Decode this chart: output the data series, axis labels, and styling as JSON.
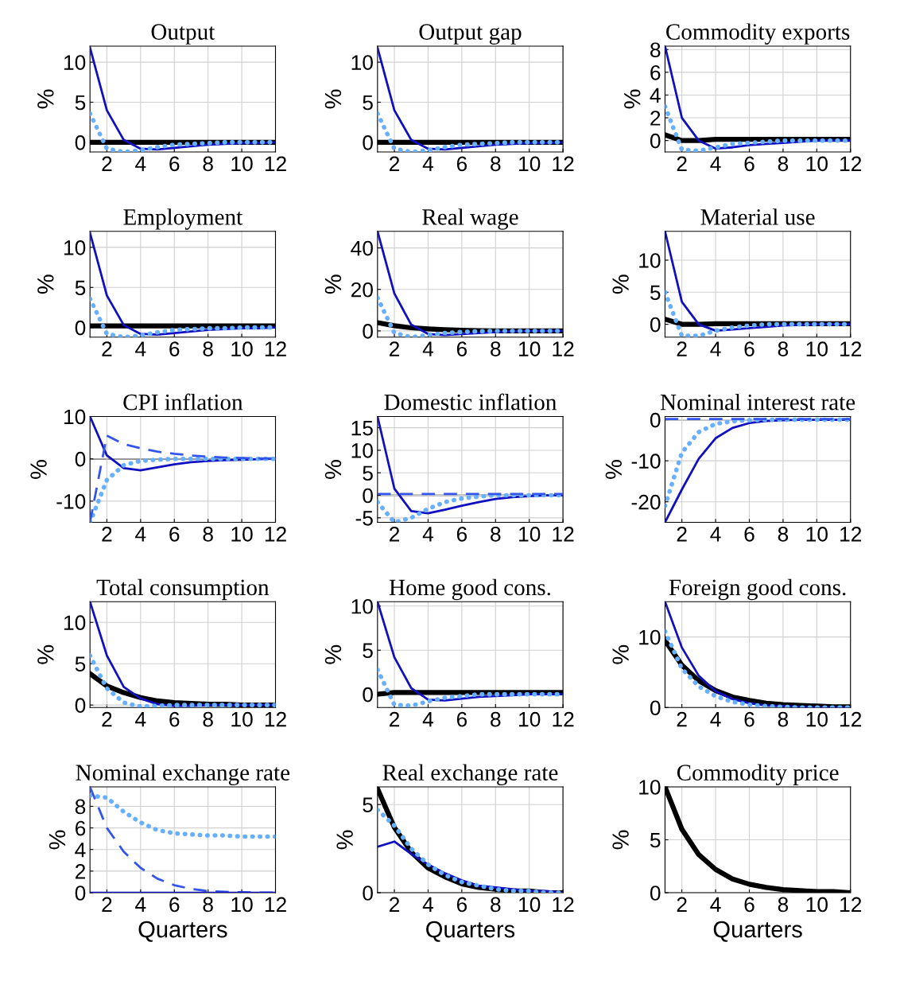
{
  "chart_data": [
    {
      "type": "line",
      "title": "Output",
      "ylabel": "%",
      "x": [
        1,
        2,
        3,
        4,
        5,
        6,
        7,
        8,
        9,
        10,
        11,
        12
      ],
      "xlim": [
        1,
        12
      ],
      "xticks": [
        2,
        4,
        6,
        8,
        10,
        12
      ],
      "ylim": [
        -1.2,
        12
      ],
      "yticks": [
        0,
        5,
        10
      ],
      "grid": true,
      "series": [
        {
          "color": "#1010c0",
          "line_style": "solid",
          "values": [
            11.8,
            4,
            0.3,
            -0.8,
            -0.9,
            -0.7,
            -0.5,
            -0.3,
            -0.2,
            -0.1,
            -0.1,
            0
          ]
        },
        {
          "color": "#66b0ff",
          "line_style": "dotted",
          "values": [
            3.6,
            -0.8,
            -1.2,
            -1.0,
            -0.6,
            -0.3,
            -0.2,
            -0.1,
            0,
            0,
            0,
            0
          ]
        },
        {
          "color": "#000000",
          "line_style": "solid",
          "values": [
            0,
            0,
            0,
            0,
            0,
            0,
            0,
            0,
            0,
            0,
            0,
            0
          ]
        }
      ]
    },
    {
      "type": "line",
      "title": "Output gap",
      "ylabel": "%",
      "x": [
        1,
        2,
        3,
        4,
        5,
        6,
        7,
        8,
        9,
        10,
        11,
        12
      ],
      "xlim": [
        1,
        12
      ],
      "xticks": [
        2,
        4,
        6,
        8,
        10,
        12
      ],
      "ylim": [
        -1.2,
        12
      ],
      "yticks": [
        0,
        5,
        10
      ],
      "grid": true,
      "series": [
        {
          "color": "#1010c0",
          "line_style": "solid",
          "values": [
            11.8,
            4,
            0.3,
            -0.8,
            -0.9,
            -0.7,
            -0.5,
            -0.3,
            -0.2,
            -0.1,
            -0.1,
            0
          ]
        },
        {
          "color": "#66b0ff",
          "line_style": "dotted",
          "values": [
            3.6,
            -0.8,
            -1.2,
            -1.0,
            -0.6,
            -0.3,
            -0.2,
            -0.1,
            0,
            0,
            0,
            0
          ]
        },
        {
          "color": "#000000",
          "line_style": "solid",
          "values": [
            0,
            0,
            0,
            0,
            0,
            0,
            0,
            0,
            0,
            0,
            0,
            0
          ]
        }
      ]
    },
    {
      "type": "line",
      "title": "Commodity exports",
      "ylabel": "%",
      "x": [
        1,
        2,
        3,
        4,
        5,
        6,
        7,
        8,
        9,
        10,
        11,
        12
      ],
      "xlim": [
        1,
        12
      ],
      "xticks": [
        2,
        4,
        6,
        8,
        10,
        12
      ],
      "ylim": [
        -1,
        8.3
      ],
      "yticks": [
        0,
        2,
        4,
        6,
        8
      ],
      "grid": true,
      "series": [
        {
          "color": "#1010c0",
          "line_style": "solid",
          "values": [
            8.3,
            2,
            0,
            -0.7,
            -0.6,
            -0.4,
            -0.3,
            -0.2,
            -0.1,
            0,
            0,
            0
          ]
        },
        {
          "color": "#66b0ff",
          "line_style": "dotted",
          "values": [
            3,
            -0.8,
            -0.9,
            -0.6,
            -0.3,
            -0.2,
            -0.1,
            0,
            0,
            0,
            0,
            0
          ]
        },
        {
          "color": "#000000",
          "line_style": "solid",
          "values": [
            0.5,
            0,
            0,
            0.1,
            0.1,
            0.1,
            0.1,
            0.1,
            0.1,
            0.1,
            0.1,
            0.1
          ]
        }
      ]
    },
    {
      "type": "line",
      "title": "Employment",
      "ylabel": "%",
      "x": [
        1,
        2,
        3,
        4,
        5,
        6,
        7,
        8,
        9,
        10,
        11,
        12
      ],
      "xlim": [
        1,
        12
      ],
      "xticks": [
        2,
        4,
        6,
        8,
        10,
        12
      ],
      "ylim": [
        -1.2,
        12
      ],
      "yticks": [
        0,
        5,
        10
      ],
      "grid": true,
      "series": [
        {
          "color": "#1010c0",
          "line_style": "solid",
          "values": [
            11.8,
            4,
            0.3,
            -0.8,
            -0.9,
            -0.7,
            -0.5,
            -0.3,
            -0.2,
            -0.1,
            -0.1,
            0
          ]
        },
        {
          "color": "#66b0ff",
          "line_style": "dotted",
          "values": [
            3.6,
            -0.8,
            -1.2,
            -1.0,
            -0.6,
            -0.3,
            -0.2,
            -0.1,
            -0.1,
            0,
            0,
            0
          ]
        },
        {
          "color": "#000000",
          "line_style": "solid",
          "values": [
            0.2,
            0.2,
            0.2,
            0.2,
            0.2,
            0.2,
            0.2,
            0.2,
            0.2,
            0.2,
            0.2,
            0.2
          ]
        }
      ]
    },
    {
      "type": "line",
      "title": "Real wage",
      "ylabel": "%",
      "x": [
        1,
        2,
        3,
        4,
        5,
        6,
        7,
        8,
        9,
        10,
        11,
        12
      ],
      "xlim": [
        1,
        12
      ],
      "xticks": [
        2,
        4,
        6,
        8,
        10,
        12
      ],
      "ylim": [
        -3,
        48
      ],
      "yticks": [
        0,
        20,
        40
      ],
      "grid": true,
      "series": [
        {
          "color": "#1010c0",
          "line_style": "solid",
          "values": [
            48,
            18,
            3,
            -1.5,
            -2,
            -1.5,
            -1,
            -0.6,
            -0.3,
            -0.1,
            0,
            0
          ]
        },
        {
          "color": "#66b0ff",
          "line_style": "dotted",
          "values": [
            16,
            -1,
            -3,
            -2,
            -1,
            -0.5,
            -0.2,
            0,
            0,
            0,
            0,
            0
          ]
        },
        {
          "color": "#000000",
          "line_style": "solid",
          "values": [
            4,
            2.5,
            1.5,
            1,
            0.6,
            0.3,
            0.1,
            0,
            0,
            0,
            0,
            0
          ]
        }
      ]
    },
    {
      "type": "line",
      "title": "Material use",
      "ylabel": "%",
      "x": [
        1,
        2,
        3,
        4,
        5,
        6,
        7,
        8,
        9,
        10,
        11,
        12
      ],
      "xlim": [
        1,
        12
      ],
      "xticks": [
        2,
        4,
        6,
        8,
        10,
        12
      ],
      "ylim": [
        -2,
        14.5
      ],
      "yticks": [
        0,
        5,
        10
      ],
      "grid": true,
      "series": [
        {
          "color": "#1010c0",
          "line_style": "solid",
          "values": [
            14.5,
            3.5,
            0,
            -1,
            -0.8,
            -0.6,
            -0.4,
            -0.2,
            -0.1,
            0,
            0,
            0
          ]
        },
        {
          "color": "#66b0ff",
          "line_style": "dotted",
          "values": [
            5,
            -1.8,
            -1.8,
            -1,
            -0.5,
            -0.2,
            0,
            0,
            0,
            0,
            0,
            0
          ]
        },
        {
          "color": "#000000",
          "line_style": "solid",
          "values": [
            0.8,
            0,
            0,
            0.1,
            0.1,
            0.1,
            0.1,
            0.1,
            0.1,
            0.1,
            0.1,
            0.1
          ]
        }
      ]
    },
    {
      "type": "line",
      "title": "CPI inflation",
      "ylabel": "%",
      "x": [
        1,
        2,
        3,
        4,
        5,
        6,
        7,
        8,
        9,
        10,
        11,
        12
      ],
      "xlim": [
        1,
        12
      ],
      "xticks": [
        2,
        4,
        6,
        8,
        10,
        12
      ],
      "ylim": [
        -15,
        10
      ],
      "yticks": [
        -10,
        0,
        10
      ],
      "grid": true,
      "ref_lines": [
        {
          "axis": "y",
          "value": 0,
          "color": "#000000"
        }
      ],
      "series": [
        {
          "color": "#1010c0",
          "line_style": "solid",
          "values": [
            10,
            0.8,
            -2.2,
            -2.7,
            -2,
            -1.3,
            -0.8,
            -0.5,
            -0.3,
            -0.2,
            -0.1,
            0
          ]
        },
        {
          "color": "#66b0ff",
          "line_style": "dotted",
          "values": [
            -15,
            -5,
            -1.5,
            -0.5,
            -0.2,
            0,
            0,
            0,
            0,
            0,
            0,
            0
          ]
        },
        {
          "color": "#3355ee",
          "line_style": "dashed",
          "values": [
            -15,
            5.5,
            3.5,
            2.5,
            1.7,
            1.2,
            0.8,
            0.5,
            0.3,
            0.2,
            0.1,
            0.1
          ]
        }
      ]
    },
    {
      "type": "line",
      "title": "Domestic inflation",
      "ylabel": "%",
      "x": [
        1,
        2,
        3,
        4,
        5,
        6,
        7,
        8,
        9,
        10,
        11,
        12
      ],
      "xlim": [
        1,
        12
      ],
      "xticks": [
        2,
        4,
        6,
        8,
        10,
        12
      ],
      "ylim": [
        -6,
        17.5
      ],
      "yticks": [
        -5,
        0,
        5,
        10,
        15
      ],
      "grid": true,
      "ref_lines": [
        {
          "axis": "y",
          "value": 0,
          "color": "#000000"
        }
      ],
      "series": [
        {
          "color": "#1010c0",
          "line_style": "solid",
          "values": [
            17.5,
            1.5,
            -3.5,
            -4,
            -3.2,
            -2.3,
            -1.5,
            -0.8,
            -0.4,
            -0.2,
            0,
            0
          ]
        },
        {
          "color": "#66b0ff",
          "line_style": "dotted",
          "values": [
            -1.5,
            -6,
            -5,
            -3,
            -1.5,
            -0.7,
            -0.3,
            0,
            0,
            0,
            0,
            0
          ]
        },
        {
          "color": "#3355ee",
          "line_style": "dashed",
          "values": [
            0.3,
            0.3,
            0.3,
            0.3,
            0.3,
            0.3,
            0.3,
            0.3,
            0.3,
            0.3,
            0.3,
            0.3
          ]
        }
      ]
    },
    {
      "type": "line",
      "title": "Nominal interest rate",
      "ylabel": "%",
      "x": [
        1,
        2,
        3,
        4,
        5,
        6,
        7,
        8,
        9,
        10,
        11,
        12
      ],
      "xlim": [
        1,
        12
      ],
      "xticks": [
        2,
        4,
        6,
        8,
        10,
        12
      ],
      "ylim": [
        -25,
        0.8
      ],
      "yticks": [
        -20,
        -10,
        0
      ],
      "grid": true,
      "ref_lines": [
        {
          "axis": "y",
          "value": 0,
          "color": "#000000"
        }
      ],
      "series": [
        {
          "color": "#1010c0",
          "line_style": "solid",
          "values": [
            -25,
            -17,
            -9.5,
            -4.5,
            -2,
            -0.8,
            -0.3,
            -0.1,
            0,
            0,
            0,
            0
          ]
        },
        {
          "color": "#66b0ff",
          "line_style": "dotted",
          "values": [
            -21,
            -8,
            -3,
            -1,
            -0.4,
            -0.1,
            0,
            0,
            0,
            0,
            0,
            0
          ]
        },
        {
          "color": "#3355ee",
          "line_style": "dashed",
          "values": [
            0.2,
            0.2,
            0.2,
            0.2,
            0.2,
            0.2,
            0.2,
            0.2,
            0.2,
            0.2,
            0.2,
            0.2
          ]
        }
      ]
    },
    {
      "type": "line",
      "title": "Total consumption",
      "ylabel": "%",
      "x": [
        1,
        2,
        3,
        4,
        5,
        6,
        7,
        8,
        9,
        10,
        11,
        12
      ],
      "xlim": [
        1,
        12
      ],
      "xticks": [
        2,
        4,
        6,
        8,
        10,
        12
      ],
      "ylim": [
        -0.3,
        12.5
      ],
      "yticks": [
        0,
        5,
        10
      ],
      "grid": true,
      "series": [
        {
          "color": "#1010c0",
          "line_style": "solid",
          "values": [
            12.5,
            6,
            2.2,
            0.8,
            0.1,
            -0.1,
            -0.1,
            0,
            0,
            0,
            0,
            0
          ]
        },
        {
          "color": "#66b0ff",
          "line_style": "dotted",
          "values": [
            6,
            2,
            0.3,
            -0.2,
            -0.1,
            0,
            0,
            0,
            0,
            0,
            0,
            0
          ]
        },
        {
          "color": "#000000",
          "line_style": "solid",
          "values": [
            3.8,
            2.3,
            1.5,
            0.9,
            0.5,
            0.3,
            0.2,
            0.1,
            0.1,
            0,
            0,
            0
          ]
        }
      ]
    },
    {
      "type": "line",
      "title": "Home good cons.",
      "ylabel": "%",
      "x": [
        1,
        2,
        3,
        4,
        5,
        6,
        7,
        8,
        9,
        10,
        11,
        12
      ],
      "xlim": [
        1,
        12
      ],
      "xticks": [
        2,
        4,
        6,
        8,
        10,
        12
      ],
      "ylim": [
        -1.5,
        10.5
      ],
      "yticks": [
        0,
        5,
        10
      ],
      "grid": true,
      "series": [
        {
          "color": "#1010c0",
          "line_style": "solid",
          "values": [
            10.5,
            4.2,
            0.7,
            -0.6,
            -0.7,
            -0.5,
            -0.3,
            -0.2,
            -0.1,
            0,
            0,
            0
          ]
        },
        {
          "color": "#66b0ff",
          "line_style": "dotted",
          "values": [
            2.8,
            -1.2,
            -1.3,
            -0.8,
            -0.4,
            -0.2,
            0,
            0,
            0,
            0,
            0,
            0
          ]
        },
        {
          "color": "#000000",
          "line_style": "solid",
          "values": [
            0,
            0.2,
            0.2,
            0.2,
            0.2,
            0.2,
            0.2,
            0.2,
            0.2,
            0.2,
            0.2,
            0.2
          ]
        }
      ]
    },
    {
      "type": "line",
      "title": "Foreign good cons.",
      "ylabel": "%",
      "x": [
        1,
        2,
        3,
        4,
        5,
        6,
        7,
        8,
        9,
        10,
        11,
        12
      ],
      "xlim": [
        1,
        12
      ],
      "xticks": [
        2,
        4,
        6,
        8,
        10,
        12
      ],
      "ylim": [
        0,
        15
      ],
      "yticks": [
        0,
        10
      ],
      "grid": true,
      "series": [
        {
          "color": "#1010c0",
          "line_style": "solid",
          "values": [
            15,
            8.5,
            4.5,
            2.3,
            1.2,
            0.6,
            0.3,
            0.2,
            0.1,
            0,
            0,
            0
          ]
        },
        {
          "color": "#66b0ff",
          "line_style": "dotted",
          "values": [
            10.8,
            5.5,
            3,
            1.6,
            0.8,
            0.4,
            0.2,
            0.1,
            0,
            0,
            0,
            0
          ]
        },
        {
          "color": "#000000",
          "line_style": "solid",
          "values": [
            9.5,
            6,
            3.8,
            2.4,
            1.5,
            1,
            0.6,
            0.4,
            0.3,
            0.2,
            0.1,
            0.1
          ]
        }
      ]
    },
    {
      "type": "line",
      "title": "Nominal exchange rate",
      "ylabel": "%",
      "xlabel": "Quarters",
      "x": [
        1,
        2,
        3,
        4,
        5,
        6,
        7,
        8,
        9,
        10,
        11,
        12
      ],
      "xlim": [
        1,
        12
      ],
      "xticks": [
        2,
        4,
        6,
        8,
        10,
        12
      ],
      "ylim": [
        0,
        9.8
      ],
      "yticks": [
        0,
        2,
        4,
        6,
        8
      ],
      "grid": true,
      "series": [
        {
          "color": "#66b0ff",
          "line_style": "dotted",
          "values": [
            9,
            8.8,
            7.5,
            6.5,
            5.8,
            5.5,
            5.4,
            5.3,
            5.3,
            5.2,
            5.2,
            5.2
          ]
        },
        {
          "color": "#3355ee",
          "line_style": "dashed",
          "values": [
            9.8,
            6,
            3.8,
            2.3,
            1.3,
            0.7,
            0.35,
            0.15,
            0.08,
            0.04,
            0.02,
            0
          ]
        },
        {
          "color": "#1010c0",
          "line_style": "solid",
          "values": [
            0,
            0,
            0,
            0,
            0,
            0,
            0,
            0,
            0,
            0,
            0,
            0
          ]
        }
      ]
    },
    {
      "type": "line",
      "title": "Real exchange rate",
      "ylabel": "%",
      "xlabel": "Quarters",
      "x": [
        1,
        2,
        3,
        4,
        5,
        6,
        7,
        8,
        9,
        10,
        11,
        12
      ],
      "xlim": [
        1,
        12
      ],
      "xticks": [
        2,
        4,
        6,
        8,
        10,
        12
      ],
      "ylim": [
        0,
        6
      ],
      "yticks": [
        0,
        5
      ],
      "grid": true,
      "series": [
        {
          "color": "#1010c0",
          "line_style": "solid",
          "values": [
            2.6,
            2.9,
            2.2,
            1.6,
            1.1,
            0.7,
            0.4,
            0.3,
            0.2,
            0.1,
            0.1,
            0
          ]
        },
        {
          "color": "#66b0ff",
          "line_style": "dotted",
          "values": [
            4.7,
            3.8,
            2.5,
            1.6,
            1,
            0.6,
            0.4,
            0.2,
            0.1,
            0.1,
            0,
            0
          ]
        },
        {
          "color": "#000000",
          "line_style": "solid",
          "values": [
            5.9,
            3.7,
            2.3,
            1.4,
            0.9,
            0.5,
            0.3,
            0.2,
            0.1,
            0.1,
            0,
            0
          ]
        }
      ]
    },
    {
      "type": "line",
      "title": "Commodity price",
      "ylabel": "%",
      "xlabel": "Quarters",
      "x": [
        1,
        2,
        3,
        4,
        5,
        6,
        7,
        8,
        9,
        10,
        11,
        12
      ],
      "xlim": [
        1,
        12
      ],
      "xticks": [
        2,
        4,
        6,
        8,
        10,
        12
      ],
      "ylim": [
        0,
        10
      ],
      "yticks": [
        0,
        5,
        10
      ],
      "grid": true,
      "series": [
        {
          "color": "#000000",
          "line_style": "solid",
          "values": [
            10,
            6,
            3.6,
            2.2,
            1.3,
            0.8,
            0.5,
            0.3,
            0.2,
            0.1,
            0.1,
            0
          ]
        }
      ]
    }
  ]
}
